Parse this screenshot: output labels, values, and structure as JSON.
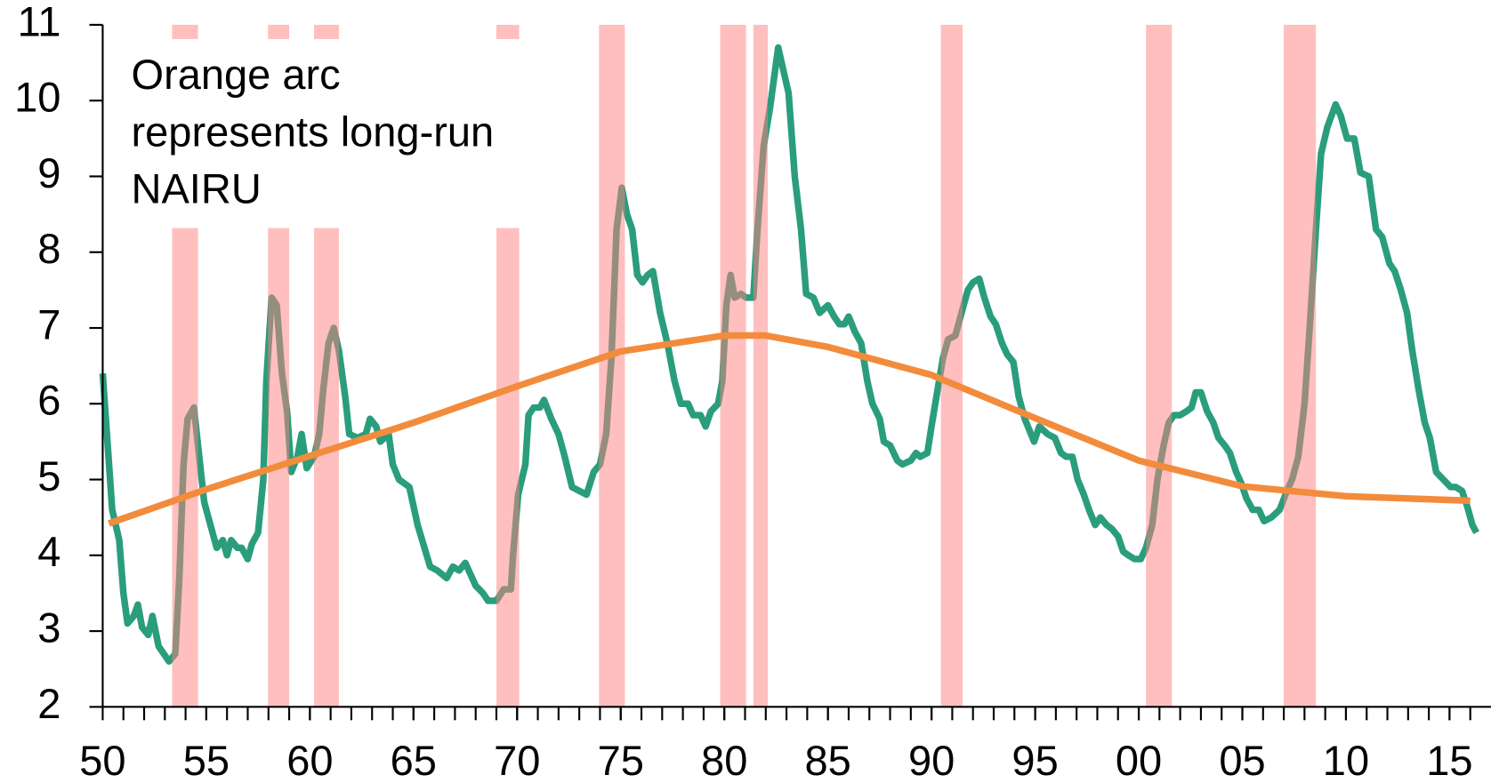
{
  "chart_data": {
    "type": "line",
    "annotation": [
      "Orange arc",
      "represents long-run",
      "NAIRU"
    ],
    "xlim": [
      1950,
      2017
    ],
    "ylim": [
      2,
      11
    ],
    "yticks": [
      2,
      3,
      4,
      5,
      6,
      7,
      8,
      9,
      10,
      11
    ],
    "xticks": [
      {
        "value": 1950,
        "label": "50"
      },
      {
        "value": 1955,
        "label": "55"
      },
      {
        "value": 1960,
        "label": "60"
      },
      {
        "value": 1965,
        "label": "65"
      },
      {
        "value": 1970,
        "label": "70"
      },
      {
        "value": 1975,
        "label": "75"
      },
      {
        "value": 1980,
        "label": "80"
      },
      {
        "value": 1985,
        "label": "85"
      },
      {
        "value": 1990,
        "label": "90"
      },
      {
        "value": 1995,
        "label": "95"
      },
      {
        "value": 2000,
        "label": "00"
      },
      {
        "value": 2005,
        "label": "05"
      },
      {
        "value": 2010,
        "label": "10"
      },
      {
        "value": 2015,
        "label": "15"
      }
    ],
    "bands": {
      "color": "#ff8080",
      "ranges": [
        [
          1953.35,
          1954.6
        ],
        [
          1957.98,
          1959.0
        ],
        [
          1960.2,
          1961.4
        ],
        [
          1969.0,
          1970.1
        ],
        [
          1973.95,
          1975.2
        ],
        [
          1979.8,
          1981.05
        ],
        [
          1981.4,
          1982.1
        ],
        [
          1990.45,
          1991.5
        ],
        [
          2000.35,
          2001.6
        ],
        [
          2007.0,
          2008.55
        ]
      ]
    },
    "series": [
      {
        "color": "#2a9d7c",
        "x": [
          1950.0,
          1950.46,
          1950.8,
          1951.0,
          1951.2,
          1951.5,
          1951.7,
          1951.9,
          1952.2,
          1952.4,
          1952.7,
          1953.2,
          1953.5,
          1953.7,
          1953.9,
          1954.1,
          1954.4,
          1954.7,
          1954.9,
          1955.2,
          1955.5,
          1955.8,
          1956.0,
          1956.2,
          1956.5,
          1956.7,
          1957.0,
          1957.2,
          1957.5,
          1957.75,
          1957.9,
          1958.15,
          1958.4,
          1958.65,
          1958.9,
          1959.1,
          1959.4,
          1959.6,
          1959.85,
          1960.2,
          1960.45,
          1960.65,
          1960.9,
          1961.15,
          1961.4,
          1961.7,
          1961.9,
          1962.3,
          1962.7,
          1962.9,
          1963.2,
          1963.4,
          1963.8,
          1964.0,
          1964.3,
          1964.8,
          1965.2,
          1965.8,
          1966.15,
          1966.6,
          1966.9,
          1967.2,
          1967.5,
          1968.0,
          1968.35,
          1968.6,
          1969.0,
          1969.35,
          1969.7,
          1969.8,
          1970.05,
          1970.4,
          1970.55,
          1970.8,
          1971.1,
          1971.3,
          1971.65,
          1972.0,
          1972.3,
          1972.65,
          1973.0,
          1973.35,
          1973.7,
          1974.0,
          1974.3,
          1974.55,
          1974.8,
          1975.05,
          1975.3,
          1975.55,
          1975.8,
          1976.05,
          1976.3,
          1976.55,
          1976.9,
          1977.25,
          1977.6,
          1977.9,
          1978.25,
          1978.5,
          1978.85,
          1979.1,
          1979.35,
          1979.7,
          1979.9,
          1980.1,
          1980.3,
          1980.5,
          1980.8,
          1981.05,
          1981.4,
          1981.6,
          1981.9,
          1982.2,
          1982.6,
          1982.85,
          1983.1,
          1983.4,
          1983.7,
          1983.95,
          1984.3,
          1984.6,
          1985.0,
          1985.3,
          1985.55,
          1985.8,
          1986.0,
          1986.3,
          1986.6,
          1986.9,
          1987.15,
          1987.5,
          1987.7,
          1988.0,
          1988.35,
          1988.6,
          1989.0,
          1989.25,
          1989.45,
          1989.8,
          1990.0,
          1990.3,
          1990.55,
          1990.8,
          1991.15,
          1991.45,
          1991.75,
          1992.0,
          1992.3,
          1992.55,
          1992.85,
          1993.1,
          1993.4,
          1993.65,
          1993.95,
          1994.2,
          1994.5,
          1994.8,
          1994.95,
          1995.2,
          1995.6,
          1995.95,
          1996.25,
          1996.5,
          1996.8,
          1997.05,
          1997.35,
          1997.6,
          1997.9,
          1998.15,
          1998.45,
          1998.7,
          1999.0,
          1999.25,
          1999.5,
          1999.8,
          2000.1,
          2000.35,
          2000.65,
          2000.9,
          2001.2,
          2001.45,
          2001.7,
          2002.0,
          2002.3,
          2002.55,
          2002.75,
          2003.0,
          2003.3,
          2003.6,
          2003.85,
          2004.15,
          2004.4,
          2004.7,
          2004.95,
          2005.2,
          2005.5,
          2005.8,
          2006.05,
          2006.4,
          2006.8,
          2007.15,
          2007.4,
          2007.7,
          2008.0,
          2008.25,
          2008.55,
          2008.8,
          2009.1,
          2009.5,
          2009.75,
          2010.05,
          2010.4,
          2010.7,
          2011.1,
          2011.45,
          2011.75,
          2012.1,
          2012.35,
          2012.65,
          2012.95,
          2013.2,
          2013.5,
          2013.8,
          2014.05,
          2014.35,
          2014.7,
          2015.05,
          2015.3,
          2015.6,
          2015.85,
          2016.1,
          2016.3
        ],
        "values": [
          6.4,
          4.6,
          4.2,
          3.5,
          3.1,
          3.2,
          3.35,
          3.05,
          2.95,
          3.2,
          2.8,
          2.6,
          2.7,
          3.7,
          5.2,
          5.8,
          5.95,
          5.2,
          4.7,
          4.4,
          4.1,
          4.2,
          4.0,
          4.2,
          4.1,
          4.1,
          3.95,
          4.15,
          4.3,
          5.0,
          6.3,
          7.4,
          7.3,
          6.4,
          5.9,
          5.1,
          5.3,
          5.6,
          5.15,
          5.3,
          5.6,
          6.2,
          6.8,
          7.0,
          6.7,
          6.1,
          5.6,
          5.55,
          5.6,
          5.8,
          5.7,
          5.5,
          5.6,
          5.2,
          5.0,
          4.9,
          4.4,
          3.85,
          3.8,
          3.7,
          3.85,
          3.8,
          3.9,
          3.6,
          3.5,
          3.4,
          3.4,
          3.55,
          3.55,
          4.0,
          4.8,
          5.2,
          5.85,
          5.95,
          5.95,
          6.05,
          5.8,
          5.6,
          5.3,
          4.9,
          4.85,
          4.8,
          5.1,
          5.2,
          5.6,
          6.6,
          8.3,
          8.85,
          8.5,
          8.3,
          7.7,
          7.6,
          7.7,
          7.75,
          7.2,
          6.8,
          6.3,
          6.0,
          6.0,
          5.85,
          5.85,
          5.7,
          5.9,
          6.0,
          6.3,
          7.3,
          7.7,
          7.4,
          7.45,
          7.4,
          7.4,
          8.3,
          9.4,
          9.9,
          10.7,
          10.4,
          10.1,
          9.0,
          8.3,
          7.45,
          7.4,
          7.2,
          7.3,
          7.15,
          7.05,
          7.05,
          7.15,
          6.95,
          6.8,
          6.3,
          6.0,
          5.8,
          5.5,
          5.45,
          5.25,
          5.2,
          5.25,
          5.35,
          5.3,
          5.35,
          5.7,
          6.2,
          6.6,
          6.85,
          6.9,
          7.2,
          7.5,
          7.6,
          7.65,
          7.4,
          7.15,
          7.05,
          6.8,
          6.65,
          6.55,
          6.1,
          5.8,
          5.6,
          5.5,
          5.7,
          5.6,
          5.55,
          5.35,
          5.3,
          5.3,
          5.0,
          4.8,
          4.6,
          4.4,
          4.5,
          4.4,
          4.35,
          4.25,
          4.05,
          4.0,
          3.95,
          3.95,
          4.1,
          4.4,
          5.0,
          5.45,
          5.75,
          5.85,
          5.85,
          5.9,
          5.95,
          6.15,
          6.15,
          5.9,
          5.75,
          5.55,
          5.45,
          5.35,
          5.1,
          4.95,
          4.75,
          4.6,
          4.6,
          4.45,
          4.5,
          4.6,
          4.85,
          5.0,
          5.3,
          6.0,
          7.0,
          8.3,
          9.3,
          9.65,
          9.95,
          9.8,
          9.5,
          9.5,
          9.05,
          9.0,
          8.3,
          8.2,
          7.85,
          7.75,
          7.5,
          7.2,
          6.7,
          6.2,
          5.75,
          5.55,
          5.1,
          5.0,
          4.9,
          4.9,
          4.85,
          4.65,
          4.4,
          4.3
        ]
      },
      {
        "color": "#f28c3c",
        "x": [
          1950.3,
          1955,
          1960,
          1965,
          1970,
          1975,
          1980,
          1982,
          1985,
          1990,
          1995,
          2000,
          2005,
          2010,
          2016
        ],
        "values": [
          4.42,
          4.87,
          5.31,
          5.75,
          6.23,
          6.69,
          6.9,
          6.9,
          6.75,
          6.38,
          5.81,
          5.25,
          4.91,
          4.78,
          4.72
        ]
      }
    ]
  }
}
